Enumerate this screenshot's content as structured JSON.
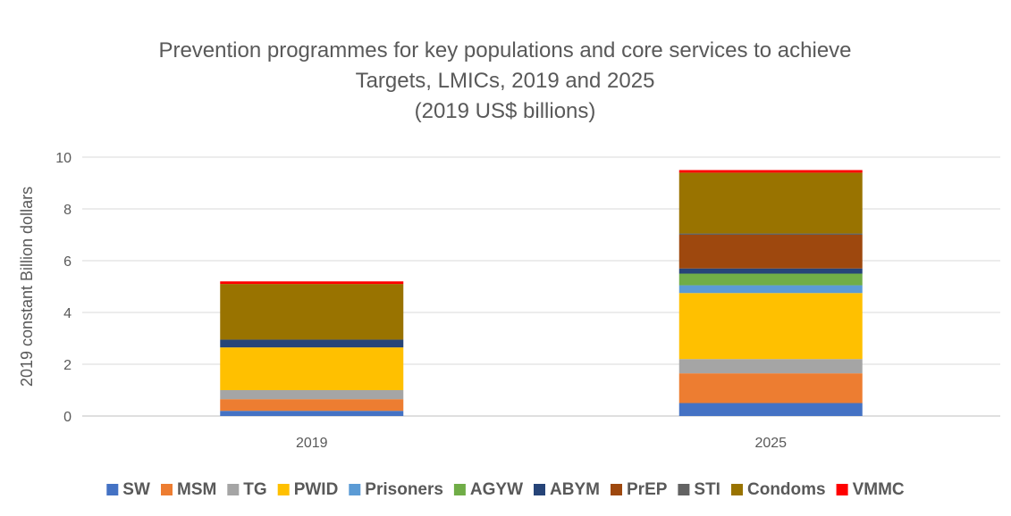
{
  "chart_data": {
    "type": "bar",
    "stacked": true,
    "title_lines": [
      "Prevention programmes for key populations and core services to achieve",
      "Targets, LMICs, 2019 and 2025",
      "(2019 US$ billions)"
    ],
    "xlabel": "",
    "ylabel": "2019 constant Billion dollars",
    "ylim": [
      0,
      10
    ],
    "yticks": [
      0,
      2,
      4,
      6,
      8,
      10
    ],
    "grid": true,
    "legend_position": "bottom",
    "categories": [
      "2019",
      "2025"
    ],
    "series": [
      {
        "name": "SW",
        "color": "#4472C4",
        "values": [
          0.2,
          0.5
        ]
      },
      {
        "name": "MSM",
        "color": "#ED7D31",
        "values": [
          0.45,
          1.15
        ]
      },
      {
        "name": "TG",
        "color": "#A5A5A5",
        "values": [
          0.35,
          0.55
        ]
      },
      {
        "name": "PWID",
        "color": "#FFC000",
        "values": [
          1.65,
          2.55
        ]
      },
      {
        "name": "Prisoners",
        "color": "#5B9BD5",
        "values": [
          0.0,
          0.3
        ]
      },
      {
        "name": "AGYW",
        "color": "#70AD47",
        "values": [
          0.0,
          0.45
        ]
      },
      {
        "name": "ABYM",
        "color": "#264478",
        "values": [
          0.3,
          0.2
        ]
      },
      {
        "name": "PrEP",
        "color": "#9E480E",
        "values": [
          0.0,
          1.3
        ]
      },
      {
        "name": "STI",
        "color": "#636363",
        "values": [
          0.0,
          0.05
        ]
      },
      {
        "name": "Condoms",
        "color": "#997300",
        "values": [
          2.15,
          2.35
        ]
      },
      {
        "name": "VMMC",
        "color": "#FF0000",
        "values": [
          0.1,
          0.1
        ]
      }
    ]
  }
}
